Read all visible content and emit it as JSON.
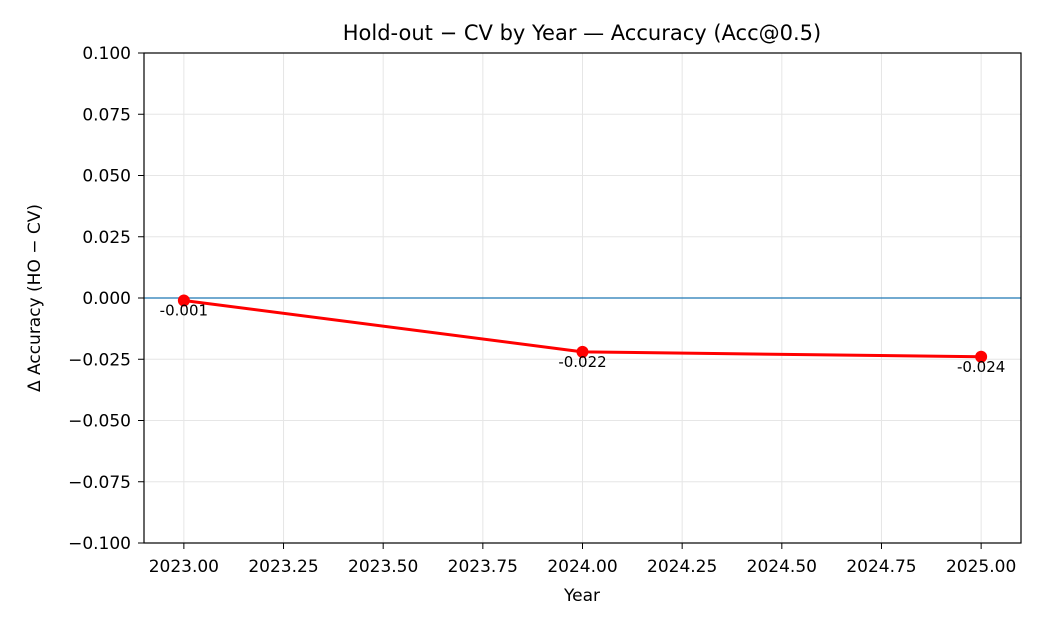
{
  "chart_data": {
    "type": "line",
    "title": "Hold-out − CV by Year — Accuracy (Acc@0.5)",
    "xlabel": "Year",
    "ylabel": "Δ Accuracy (HO − CV)",
    "xlim": [
      2022.9,
      2025.1
    ],
    "ylim": [
      -0.1,
      0.1
    ],
    "x_ticks": [
      "2023.00",
      "2023.25",
      "2023.50",
      "2023.75",
      "2024.00",
      "2024.25",
      "2024.50",
      "2024.75",
      "2025.00"
    ],
    "y_ticks": [
      "0.100",
      "0.075",
      "0.050",
      "0.025",
      "0.000",
      "−0.025",
      "−0.050",
      "−0.075",
      "−0.100"
    ],
    "grid": true,
    "reference_line": 0,
    "series": [
      {
        "x": [
          2023,
          2024,
          2025
        ],
        "values": [
          -0.001,
          -0.022,
          -0.024
        ],
        "labels": [
          "-0.001",
          "-0.022",
          "-0.024"
        ],
        "color": "#ff0000"
      }
    ],
    "colors": {
      "reference_line": "#1f77b4",
      "series": "#ff0000",
      "grid": "#e6e6e6"
    }
  }
}
